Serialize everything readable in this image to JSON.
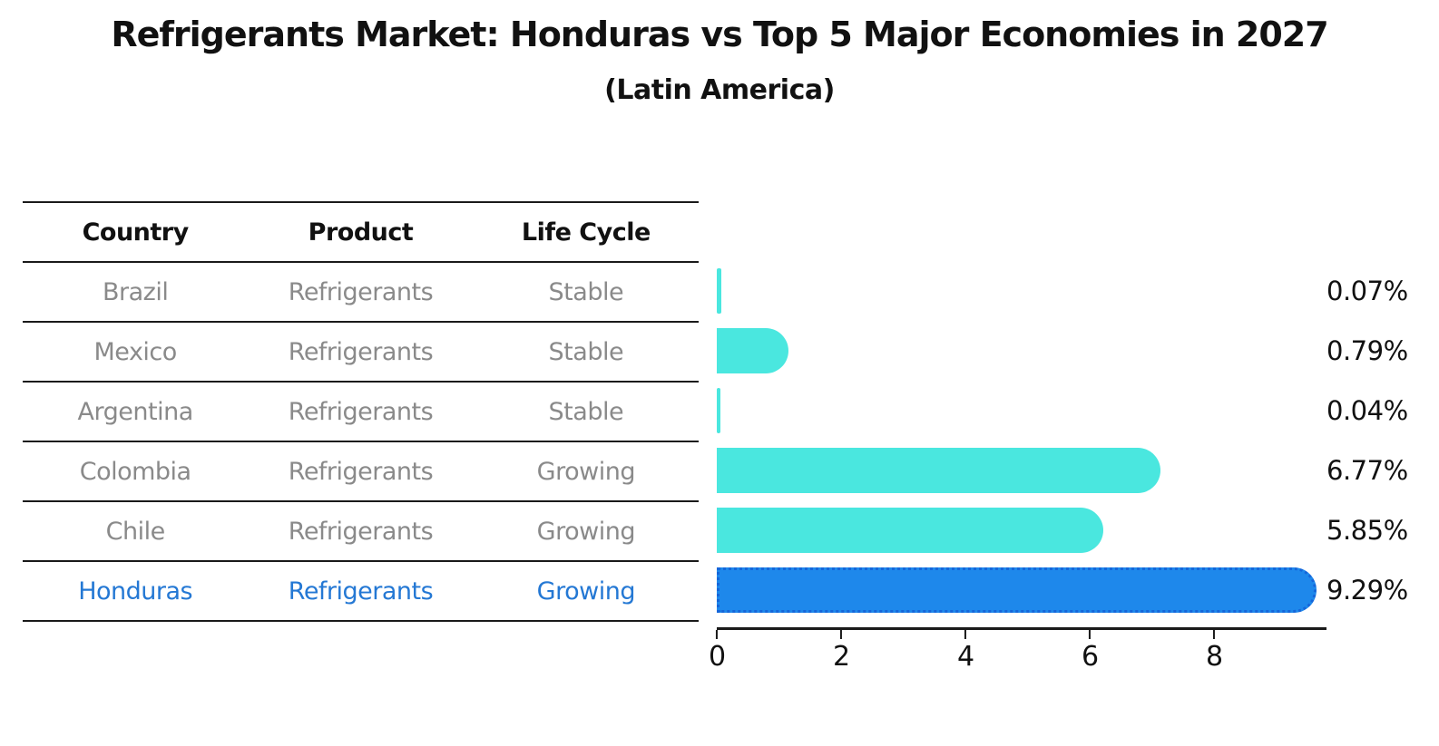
{
  "title": "Refrigerants Market: Honduras vs Top 5 Major Economies in 2027",
  "subtitle": "(Latin America)",
  "table": {
    "headers": [
      "Country",
      "Product",
      "Life Cycle"
    ],
    "rows": [
      {
        "country": "Brazil",
        "product": "Refrigerants",
        "life_cycle": "Stable",
        "highlight": false
      },
      {
        "country": "Mexico",
        "product": "Refrigerants",
        "life_cycle": "Stable",
        "highlight": false
      },
      {
        "country": "Argentina",
        "product": "Refrigerants",
        "life_cycle": "Stable",
        "highlight": false
      },
      {
        "country": "Colombia",
        "product": "Refrigerants",
        "life_cycle": "Growing",
        "highlight": false
      },
      {
        "country": "Chile",
        "product": "Refrigerants",
        "life_cycle": "Growing",
        "highlight": false
      },
      {
        "country": "Honduras",
        "product": "Refrigerants",
        "life_cycle": "Growing",
        "highlight": true
      }
    ]
  },
  "chart_data": {
    "type": "bar",
    "orientation": "horizontal",
    "title": "Refrigerants Market: Honduras vs Top 5 Major Economies in 2027 (Latin America)",
    "categories": [
      "Brazil",
      "Mexico",
      "Argentina",
      "Colombia",
      "Chile",
      "Honduras"
    ],
    "values": [
      0.07,
      0.79,
      0.04,
      6.77,
      5.85,
      9.29
    ],
    "value_labels": [
      "0.07%",
      "0.79%",
      "0.04%",
      "6.77%",
      "5.85%",
      "9.29%"
    ],
    "x_ticks": [
      0,
      2,
      4,
      6,
      8
    ],
    "xlim": [
      0,
      9.8
    ],
    "grid": false,
    "legend": "none",
    "highlight_index": 5,
    "bar_color": "#4ae7df",
    "highlight_color": "#1e88eb",
    "highlight_border_color": "#1566da",
    "highlight_text_color": "#2478d4"
  }
}
